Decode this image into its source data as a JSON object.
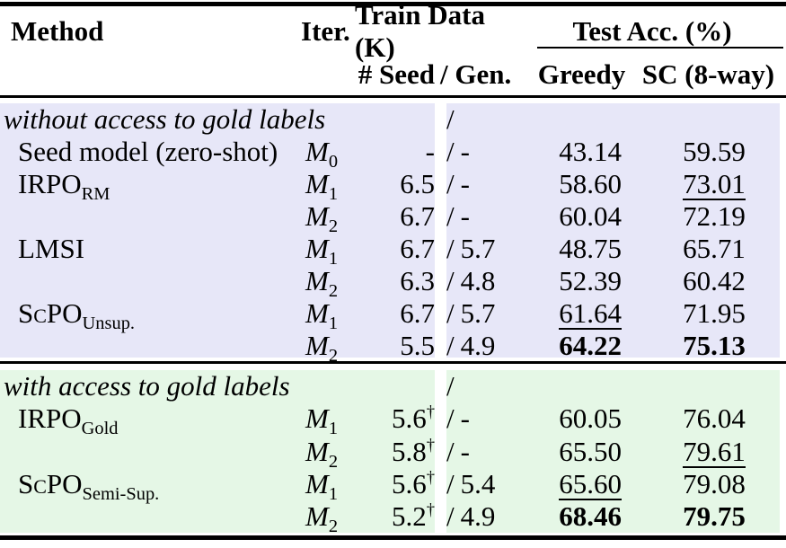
{
  "colors": {
    "section1_bg": "#e7e7f8",
    "section2_bg": "#e5f7e6",
    "rule": "#000000"
  },
  "table": {
    "header": {
      "method": "Method",
      "iter": "Iter.",
      "train_data": "Train Data (K)",
      "test_acc": "Test Acc. (%)",
      "seed": "# Seed",
      "gen": "/ Gen.",
      "greedy": "Greedy",
      "sc": "SC (8-way)"
    },
    "sections": [
      {
        "title": "without access to gold labels",
        "slash": "/",
        "rows": [
          {
            "method": "Seed model (zero-shot)",
            "method_sub": "",
            "iter_base": "M",
            "iter_sub": "0",
            "seed": "-",
            "dagger": "",
            "slash": "/",
            "gen": "-",
            "greedy": "43.14",
            "sc": "59.59"
          },
          {
            "method": "IRPO",
            "method_sub": "RM",
            "iter_base": "M",
            "iter_sub": "1",
            "seed": "6.5",
            "dagger": "",
            "slash": "/",
            "gen": "-",
            "greedy": "58.60",
            "sc": "73.01"
          },
          {
            "method": "",
            "method_sub": "",
            "iter_base": "M",
            "iter_sub": "2",
            "seed": "6.7",
            "dagger": "",
            "slash": "/",
            "gen": "-",
            "greedy": "60.04",
            "sc": "72.19"
          },
          {
            "method": "LMSI",
            "method_sub": "",
            "iter_base": "M",
            "iter_sub": "1",
            "seed": "6.7",
            "dagger": "",
            "slash": "/",
            "gen": "5.7",
            "greedy": "48.75",
            "sc": "65.71"
          },
          {
            "method": "",
            "method_sub": "",
            "iter_base": "M",
            "iter_sub": "2",
            "seed": "6.3",
            "dagger": "",
            "slash": "/",
            "gen": "4.8",
            "greedy": "52.39",
            "sc": "60.42"
          },
          {
            "method": "ScPO",
            "method_sub": "Unsup.",
            "iter_base": "M",
            "iter_sub": "1",
            "seed": "6.7",
            "dagger": "",
            "slash": "/",
            "gen": "5.7",
            "greedy": "61.64",
            "sc": "71.95"
          },
          {
            "method": "",
            "method_sub": "",
            "iter_base": "M",
            "iter_sub": "2",
            "seed": "5.5",
            "dagger": "",
            "slash": "/",
            "gen": "4.9",
            "greedy": "64.22",
            "sc": "75.13"
          }
        ]
      },
      {
        "title": "with access to gold labels",
        "slash": "/",
        "rows": [
          {
            "method": "IRPO",
            "method_sub": "Gold",
            "iter_base": "M",
            "iter_sub": "1",
            "seed": "5.6",
            "dagger": "†",
            "slash": "/",
            "gen": "-",
            "greedy": "60.05",
            "sc": "76.04"
          },
          {
            "method": "",
            "method_sub": "",
            "iter_base": "M",
            "iter_sub": "2",
            "seed": "5.8",
            "dagger": "†",
            "slash": "/",
            "gen": "-",
            "greedy": "65.50",
            "sc": "79.61"
          },
          {
            "method": "ScPO",
            "method_sub": "Semi-Sup.",
            "iter_base": "M",
            "iter_sub": "1",
            "seed": "5.6",
            "dagger": "†",
            "slash": "/",
            "gen": "5.4",
            "greedy": "65.60",
            "sc": "79.08"
          },
          {
            "method": "",
            "method_sub": "",
            "iter_base": "M",
            "iter_sub": "2",
            "seed": "5.2",
            "dagger": "†",
            "slash": "/",
            "gen": "4.9",
            "greedy": "68.46",
            "sc": "79.75"
          }
        ]
      }
    ]
  }
}
